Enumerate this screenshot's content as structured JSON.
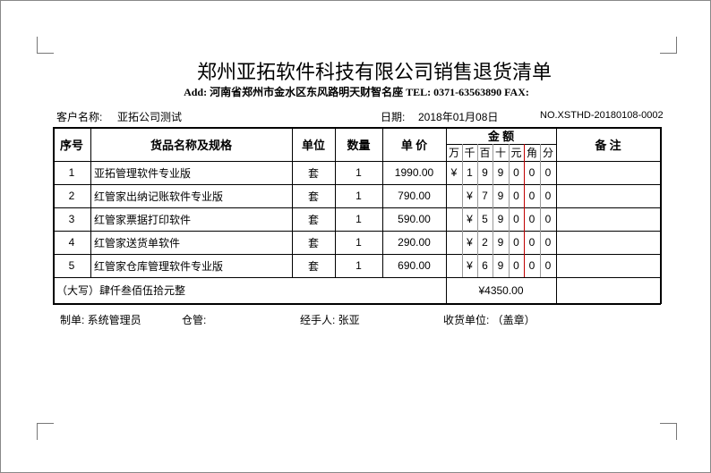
{
  "header": {
    "title": "郑州亚拓软件科技有限公司销售退货清单",
    "address": "Add: 河南省郑州市金水区东风路明天财智名座   TEL: 0371-63563890 FAX:"
  },
  "meta": {
    "customer_label": "客户名称:",
    "customer": "亚拓公司测试",
    "date_label": "日期:",
    "date": "2018年01月08日",
    "number": "NO.XSTHD-20180108-0002"
  },
  "columns": {
    "seq": "序号",
    "name": "货品名称及规格",
    "unit": "单位",
    "qty": "数量",
    "price": "单 价",
    "amount": "金  额",
    "remark": "备    注",
    "digits": [
      "万",
      "千",
      "百",
      "十",
      "元",
      "角",
      "分"
    ]
  },
  "rows": [
    {
      "seq": "1",
      "name": "亚拓管理软件专业版",
      "unit": "套",
      "qty": "1",
      "price": "1990.00",
      "digits": [
        "¥",
        "1",
        "9",
        "9",
        "0",
        "0",
        "0"
      ]
    },
    {
      "seq": "2",
      "name": "红管家出纳记账软件专业版",
      "unit": "套",
      "qty": "1",
      "price": "790.00",
      "digits": [
        "",
        "¥",
        "7",
        "9",
        "0",
        "0",
        "0"
      ]
    },
    {
      "seq": "3",
      "name": "红管家票据打印软件",
      "unit": "套",
      "qty": "1",
      "price": "590.00",
      "digits": [
        "",
        "¥",
        "5",
        "9",
        "0",
        "0",
        "0"
      ]
    },
    {
      "seq": "4",
      "name": "红管家送货单软件",
      "unit": "套",
      "qty": "1",
      "price": "290.00",
      "digits": [
        "",
        "¥",
        "2",
        "9",
        "0",
        "0",
        "0"
      ]
    },
    {
      "seq": "5",
      "name": "红管家仓库管理软件专业版",
      "unit": "套",
      "qty": "1",
      "price": "690.00",
      "digits": [
        "",
        "¥",
        "6",
        "9",
        "0",
        "0",
        "0"
      ]
    }
  ],
  "total": {
    "words": "（大写）肆仟叁佰伍拾元整",
    "amount": "¥4350.00"
  },
  "footer": {
    "maker": "制单: 系统管理员",
    "warehouse": "仓管:",
    "handler": "经手人: 张亚",
    "receiver": "收货单位: （盖章）"
  },
  "colors": {
    "divider_red": "#c00000"
  }
}
